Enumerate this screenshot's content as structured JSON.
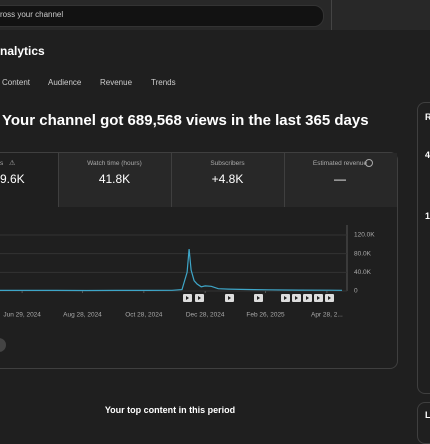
{
  "search": {
    "placeholder": "ross your channel"
  },
  "header": {
    "title": "nalytics"
  },
  "tabs": [
    "Content",
    "Audience",
    "Revenue",
    "Trends"
  ],
  "headline": "Your channel got 689,568 views in the last 365 days",
  "metrics": [
    {
      "label": "s",
      "value": "9.6K"
    },
    {
      "label": "Watch time (hours)",
      "value": "41.8K"
    },
    {
      "label": "Subscribers",
      "value": "+4.8K"
    },
    {
      "label": "Estimated revenue",
      "value": "—"
    }
  ],
  "chart": {
    "type": "line",
    "color": "#3ea6c8",
    "x": [
      "2024-06-07",
      "2024-07-01",
      "2024-08-01",
      "2024-09-01",
      "2024-10-01",
      "2024-11-01",
      "2024-11-25",
      "2024-12-05",
      "2024-12-10",
      "2024-12-12",
      "2024-12-14",
      "2024-12-17",
      "2024-12-20",
      "2024-12-24",
      "2024-12-28",
      "2025-01-03",
      "2025-01-10",
      "2025-01-20",
      "2025-02-01",
      "2025-02-15",
      "2025-03-01",
      "2025-04-01",
      "2025-05-01",
      "2025-05-13"
    ],
    "values": [
      1200,
      1300,
      1200,
      1100,
      1200,
      1300,
      1500,
      3000,
      40000,
      90000,
      45000,
      22000,
      15000,
      9000,
      11000,
      10000,
      5000,
      4000,
      3500,
      3000,
      2500,
      2000,
      1800,
      1500
    ],
    "xlim": [
      "2024-06-07",
      "2025-05-18"
    ],
    "ylim": [
      0,
      120000
    ],
    "xticks": [
      {
        "value": "2024-06-29",
        "label": "Jun 29, 2024"
      },
      {
        "value": "2024-08-28",
        "label": "Aug 28, 2024"
      },
      {
        "value": "2024-10-28",
        "label": "Oct 28, 2024"
      },
      {
        "value": "2024-12-28",
        "label": "Dec 28, 2024"
      },
      {
        "value": "2025-02-26",
        "label": "Feb 26, 2025"
      },
      {
        "value": "2025-04-28",
        "label": "Apr 28, 2..."
      }
    ],
    "yticks": [
      0,
      {
        "value": 40000,
        "label": "40.0K"
      },
      {
        "value": 80000,
        "label": "80.0K"
      },
      {
        "value": 120000,
        "label": "120.0K"
      }
    ],
    "grid": true
  },
  "top_content": {
    "title": "Your top content in this period"
  },
  "side_panel": {
    "texts": [
      "R",
      "4",
      "1",
      "L"
    ]
  }
}
